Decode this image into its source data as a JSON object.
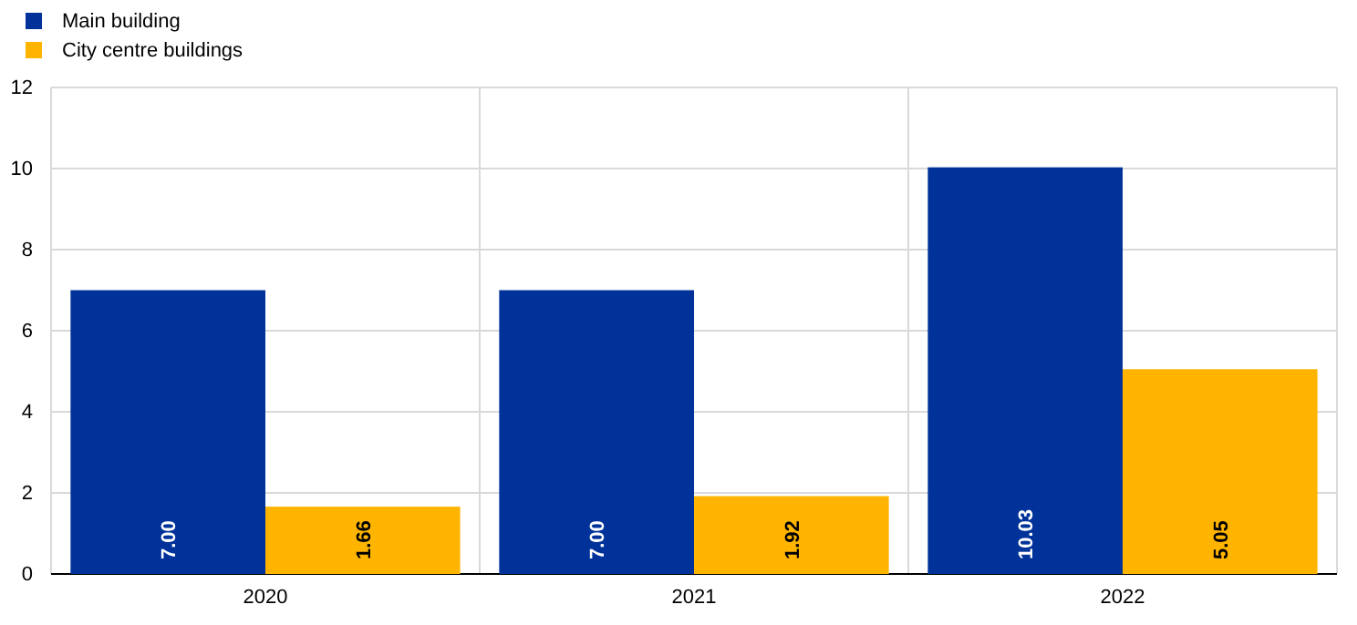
{
  "chart_data": {
    "type": "bar",
    "categories": [
      "2020",
      "2021",
      "2022"
    ],
    "series": [
      {
        "name": "Main building",
        "color": "#003299",
        "values": [
          7.0,
          7.0,
          10.03
        ],
        "value_labels": [
          "7.00",
          "7.00",
          "10.03"
        ]
      },
      {
        "name": "City centre buildings",
        "color": "#ffb400",
        "values": [
          1.66,
          1.92,
          5.05
        ],
        "value_labels": [
          "1.66",
          "1.92",
          "5.05"
        ]
      }
    ],
    "ylim": [
      0,
      12
    ],
    "yticks": [
      0,
      2,
      4,
      6,
      8,
      10,
      12
    ],
    "grid": true,
    "legend": "top left"
  }
}
